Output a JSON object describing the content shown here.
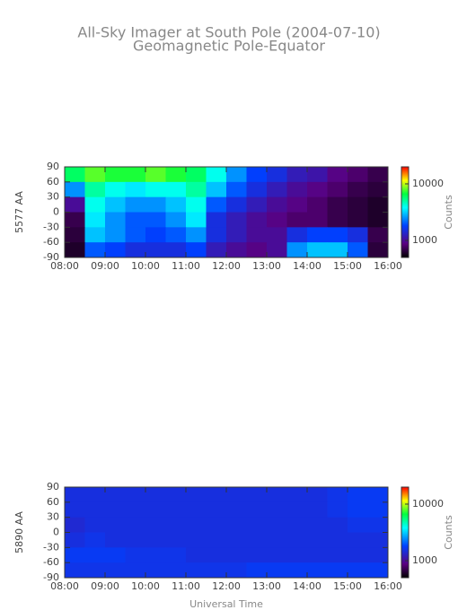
{
  "chart_data": [
    {
      "type": "heatmap",
      "title": "All-Sky Imager at South Pole (2004-07-10)",
      "subtitle": "Geomagnetic Pole-Equator",
      "ylabel": "5577 AA",
      "colorbar_label": "Counts",
      "colormap": "rainbow",
      "log_color": true,
      "clim": [
        500,
        20000
      ],
      "cticks": [
        1000,
        10000
      ],
      "xlim": [
        8,
        16
      ],
      "xticks": [
        {
          "value": 8,
          "label": "08:00"
        },
        {
          "value": 9,
          "label": "09:00"
        },
        {
          "value": 10,
          "label": "10:00"
        },
        {
          "value": 11,
          "label": "11:00"
        },
        {
          "value": 12,
          "label": "12:00"
        },
        {
          "value": 13,
          "label": "13:00"
        },
        {
          "value": 14,
          "label": "14:00"
        },
        {
          "value": 15,
          "label": "15:00"
        },
        {
          "value": 16,
          "label": "16:00"
        }
      ],
      "ylim": [
        -90,
        90
      ],
      "yticks": [
        -90,
        -60,
        -30,
        0,
        30,
        60,
        90
      ],
      "x": [
        8.25,
        8.75,
        9.25,
        9.75,
        10.25,
        10.75,
        11.25,
        11.75,
        12.25,
        12.75,
        13.25,
        13.75,
        14.25,
        14.75,
        15.25,
        15.75
      ],
      "y": [
        75,
        45,
        15,
        -15,
        -45,
        -75
      ],
      "values": [
        [
          6000,
          8000,
          7000,
          7000,
          8000,
          7000,
          6000,
          4000,
          2500,
          1800,
          1500,
          1200,
          1100,
          900,
          800,
          700
        ],
        [
          2500,
          5000,
          4000,
          3500,
          4000,
          4000,
          5000,
          3000,
          2000,
          1500,
          1200,
          1000,
          900,
          800,
          700,
          650
        ],
        [
          1000,
          4000,
          3000,
          2500,
          2500,
          3000,
          4000,
          2000,
          1500,
          1200,
          1000,
          900,
          800,
          700,
          650,
          600
        ],
        [
          700,
          3500,
          2500,
          2000,
          2000,
          2500,
          3500,
          1500,
          1200,
          1000,
          900,
          800,
          800,
          700,
          650,
          600
        ],
        [
          650,
          3000,
          2500,
          2000,
          1800,
          2000,
          2500,
          1500,
          1200,
          1000,
          1000,
          1500,
          1800,
          1800,
          1500,
          700
        ],
        [
          600,
          2000,
          1800,
          1500,
          1500,
          1500,
          1800,
          1200,
          1000,
          900,
          1000,
          2500,
          3000,
          3000,
          2000,
          650
        ]
      ]
    },
    {
      "type": "heatmap",
      "ylabel": "5890 AA",
      "xlabel": "Universal Time",
      "colorbar_label": "Counts",
      "colormap": "rainbow",
      "log_color": true,
      "clim": [
        500,
        20000
      ],
      "cticks": [
        1000,
        10000
      ],
      "xlim": [
        8,
        16
      ],
      "xticks": [
        {
          "value": 8,
          "label": "08:00"
        },
        {
          "value": 9,
          "label": "09:00"
        },
        {
          "value": 10,
          "label": "10:00"
        },
        {
          "value": 11,
          "label": "11:00"
        },
        {
          "value": 12,
          "label": "12:00"
        },
        {
          "value": 13,
          "label": "13:00"
        },
        {
          "value": 14,
          "label": "14:00"
        },
        {
          "value": 15,
          "label": "15:00"
        },
        {
          "value": 16,
          "label": "16:00"
        }
      ],
      "ylim": [
        -90,
        90
      ],
      "yticks": [
        -90,
        -60,
        -30,
        0,
        30,
        60,
        90
      ],
      "x": [
        8.25,
        8.75,
        9.25,
        9.75,
        10.25,
        10.75,
        11.25,
        11.75,
        12.25,
        12.75,
        13.25,
        13.75,
        14.25,
        14.75,
        15.25,
        15.75
      ],
      "y": [
        75,
        45,
        15,
        -15,
        -45,
        -75
      ],
      "values": [
        [
          1500,
          1500,
          1500,
          1500,
          1500,
          1500,
          1500,
          1500,
          1500,
          1500,
          1500,
          1500,
          1500,
          1600,
          1700,
          1700
        ],
        [
          1500,
          1500,
          1500,
          1500,
          1500,
          1500,
          1500,
          1500,
          1500,
          1500,
          1500,
          1500,
          1500,
          1600,
          1700,
          1700
        ],
        [
          1400,
          1500,
          1500,
          1500,
          1500,
          1500,
          1500,
          1500,
          1500,
          1500,
          1500,
          1500,
          1500,
          1500,
          1600,
          1600
        ],
        [
          1500,
          1600,
          1500,
          1500,
          1500,
          1500,
          1500,
          1500,
          1500,
          1500,
          1500,
          1500,
          1500,
          1500,
          1500,
          1500
        ],
        [
          1700,
          1700,
          1700,
          1600,
          1600,
          1600,
          1500,
          1500,
          1500,
          1500,
          1500,
          1500,
          1500,
          1500,
          1500,
          1500
        ],
        [
          1600,
          1600,
          1600,
          1600,
          1600,
          1600,
          1600,
          1600,
          1600,
          1700,
          1700,
          1700,
          1700,
          1700,
          1700,
          1700
        ]
      ]
    }
  ]
}
